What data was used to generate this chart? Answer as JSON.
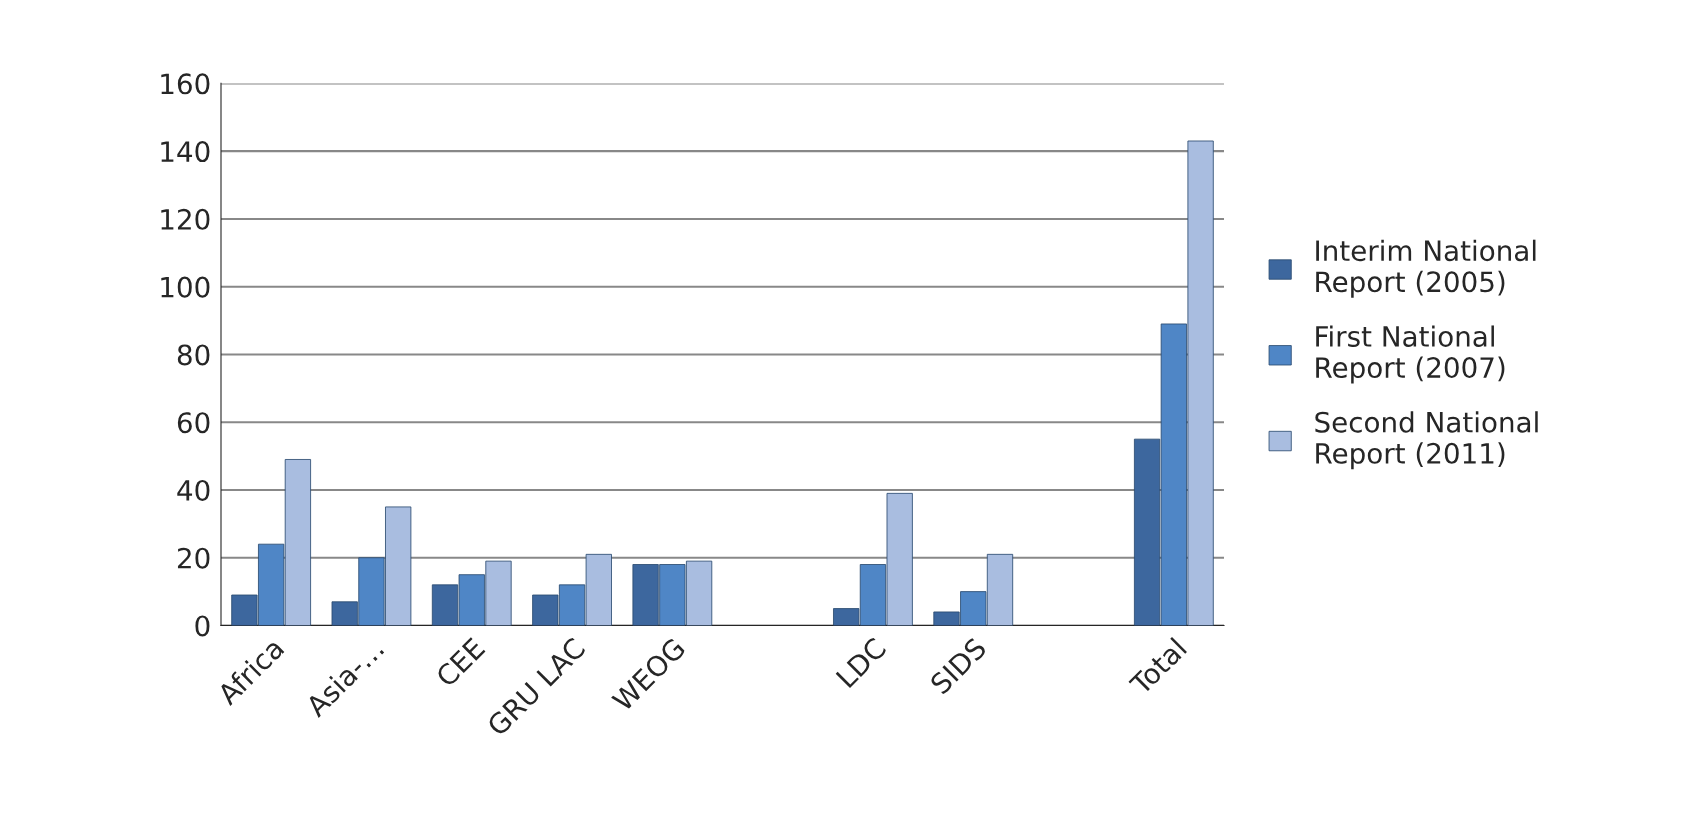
{
  "chart_data": {
    "type": "bar",
    "categories": [
      "Africa",
      "Asia-…",
      "CEE",
      "GRU LAC",
      "WEOG",
      null,
      "LDC",
      "SIDS",
      null,
      "Total"
    ],
    "series": [
      {
        "name": "Interim National Report (2005)",
        "color": "#3d679e",
        "values": [
          9,
          7,
          12,
          9,
          18,
          null,
          5,
          4,
          null,
          55
        ]
      },
      {
        "name": "First National Report (2007)",
        "color": "#4f86c6",
        "values": [
          24,
          20,
          15,
          12,
          18,
          null,
          18,
          10,
          null,
          89
        ]
      },
      {
        "name": "Second National Report (2011)",
        "color": "#a9bde0",
        "values": [
          49,
          35,
          19,
          21,
          19,
          null,
          39,
          21,
          null,
          143
        ]
      }
    ],
    "ylim": [
      0,
      160
    ],
    "yticks": [
      0,
      20,
      40,
      60,
      80,
      100,
      120,
      140,
      160
    ],
    "grid": "y",
    "legend": "right"
  }
}
